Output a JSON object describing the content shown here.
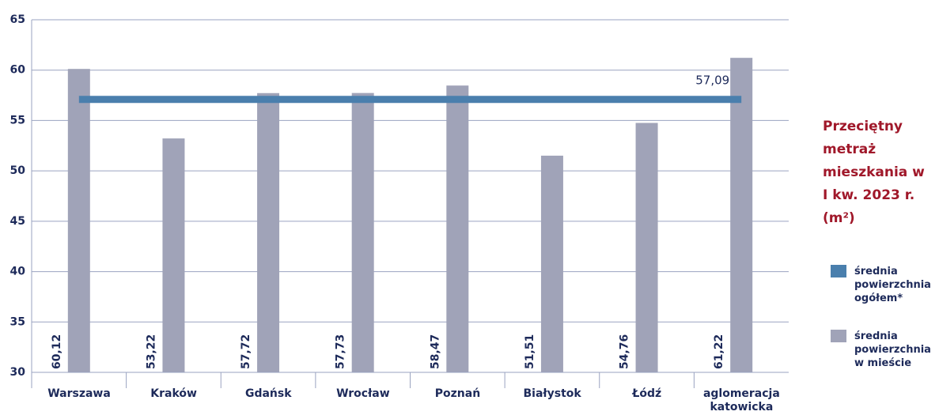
{
  "chart_data": {
    "type": "bar",
    "title": "Przeciętny metraż mieszkania w I kw. 2023 r. (m²)",
    "categories": [
      "Warszawa",
      "Kraków",
      "Gdańsk",
      "Wrocław",
      "Poznań",
      "Białystok",
      "Łódź",
      "aglomeracja katowicka"
    ],
    "series": [
      {
        "name": "średnia powierzchnia w mieście",
        "color": "#a0a3b8",
        "values": [
          60.12,
          53.22,
          57.72,
          57.73,
          58.47,
          51.51,
          54.76,
          61.22
        ],
        "value_labels": [
          "60,12",
          "53,22",
          "57,72",
          "57,73",
          "58,47",
          "51,51",
          "54,76",
          "61,22"
        ]
      }
    ],
    "reference_line": {
      "name": "średnia powierzchnia ogółem*",
      "color": "#4a7fad",
      "value": 57.09,
      "value_label": "57,09"
    },
    "ylim": [
      30,
      65
    ],
    "yticks": [
      30,
      35,
      40,
      45,
      50,
      55,
      60,
      65
    ],
    "grid": true
  }
}
